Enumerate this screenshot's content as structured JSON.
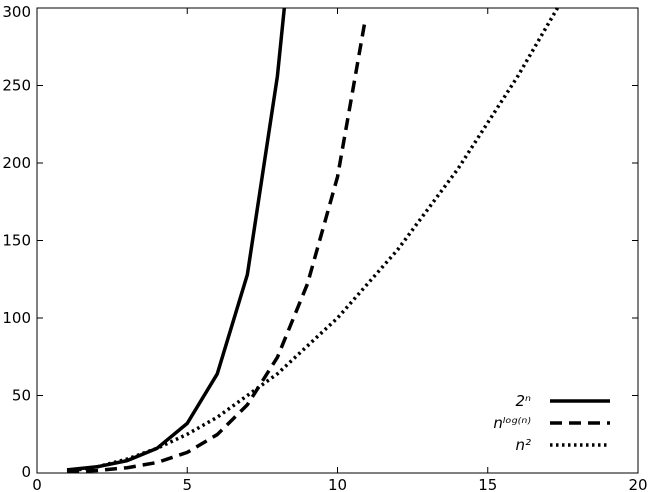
{
  "chart_data": {
    "type": "line",
    "title": "",
    "xlabel": "",
    "ylabel": "",
    "xlim": [
      0,
      20
    ],
    "ylim": [
      0,
      300
    ],
    "x_ticks": [
      0,
      5,
      10,
      15,
      20
    ],
    "y_ticks": [
      0,
      50,
      100,
      150,
      200,
      250,
      300
    ],
    "grid": false,
    "legend_position": "bottom-right",
    "series": [
      {
        "name": "2ⁿ",
        "style": "solid",
        "color": "#000000",
        "x": [
          1,
          2,
          3,
          4,
          5,
          6,
          7,
          8,
          8.23
        ],
        "y": [
          2,
          4,
          8,
          16,
          32,
          64,
          128,
          256,
          300
        ]
      },
      {
        "name": "nˡᵒᵍ⁽ⁿ⁾",
        "style": "dashed",
        "color": "#000000",
        "x": [
          1,
          2,
          3,
          4,
          5,
          6,
          7,
          8,
          9,
          10,
          10.9
        ],
        "y": [
          1,
          1.6,
          3.4,
          6.8,
          13.3,
          24.8,
          44.0,
          74.6,
          122,
          191,
          290
        ]
      },
      {
        "name": "n²",
        "style": "dotted",
        "color": "#000000",
        "x": [
          1,
          2,
          3,
          4,
          5,
          6,
          8,
          10,
          12,
          14,
          16,
          17.32
        ],
        "y": [
          1,
          4,
          9,
          16,
          25,
          36,
          64,
          100,
          144,
          196,
          256,
          300
        ]
      }
    ]
  }
}
